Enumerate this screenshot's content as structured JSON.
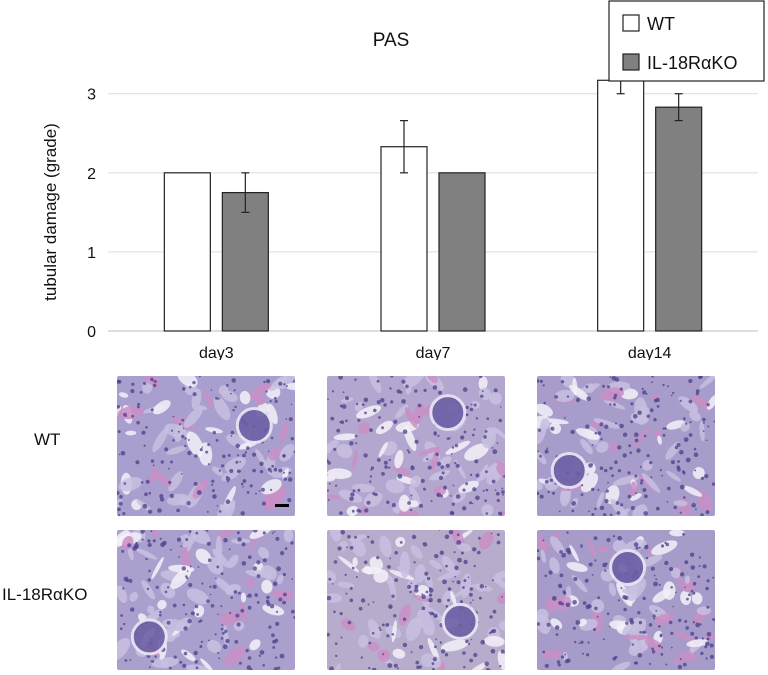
{
  "chart_data": {
    "type": "bar",
    "title": "PAS",
    "xlabel": "",
    "ylabel": "tubular damage (grade)",
    "categories": [
      "day3",
      "day7",
      "day14"
    ],
    "ylim": [
      0,
      3.3
    ],
    "yticks": [
      0,
      1,
      2,
      3
    ],
    "grid": true,
    "legend_position": "top-right",
    "series": [
      {
        "name": "WT",
        "values": [
          2.0,
          2.33,
          3.17
        ],
        "errors": [
          0.0,
          0.33,
          0.17
        ],
        "color": "#ffffff"
      },
      {
        "name": "IL-18RαKO",
        "values": [
          1.75,
          2.0,
          2.83
        ],
        "errors": [
          0.25,
          0.0,
          0.17
        ],
        "color": "#808080"
      }
    ]
  },
  "histology": {
    "row_labels": [
      "WT",
      "IL-18RαKO"
    ],
    "stain_color": "#9c8fc4"
  }
}
